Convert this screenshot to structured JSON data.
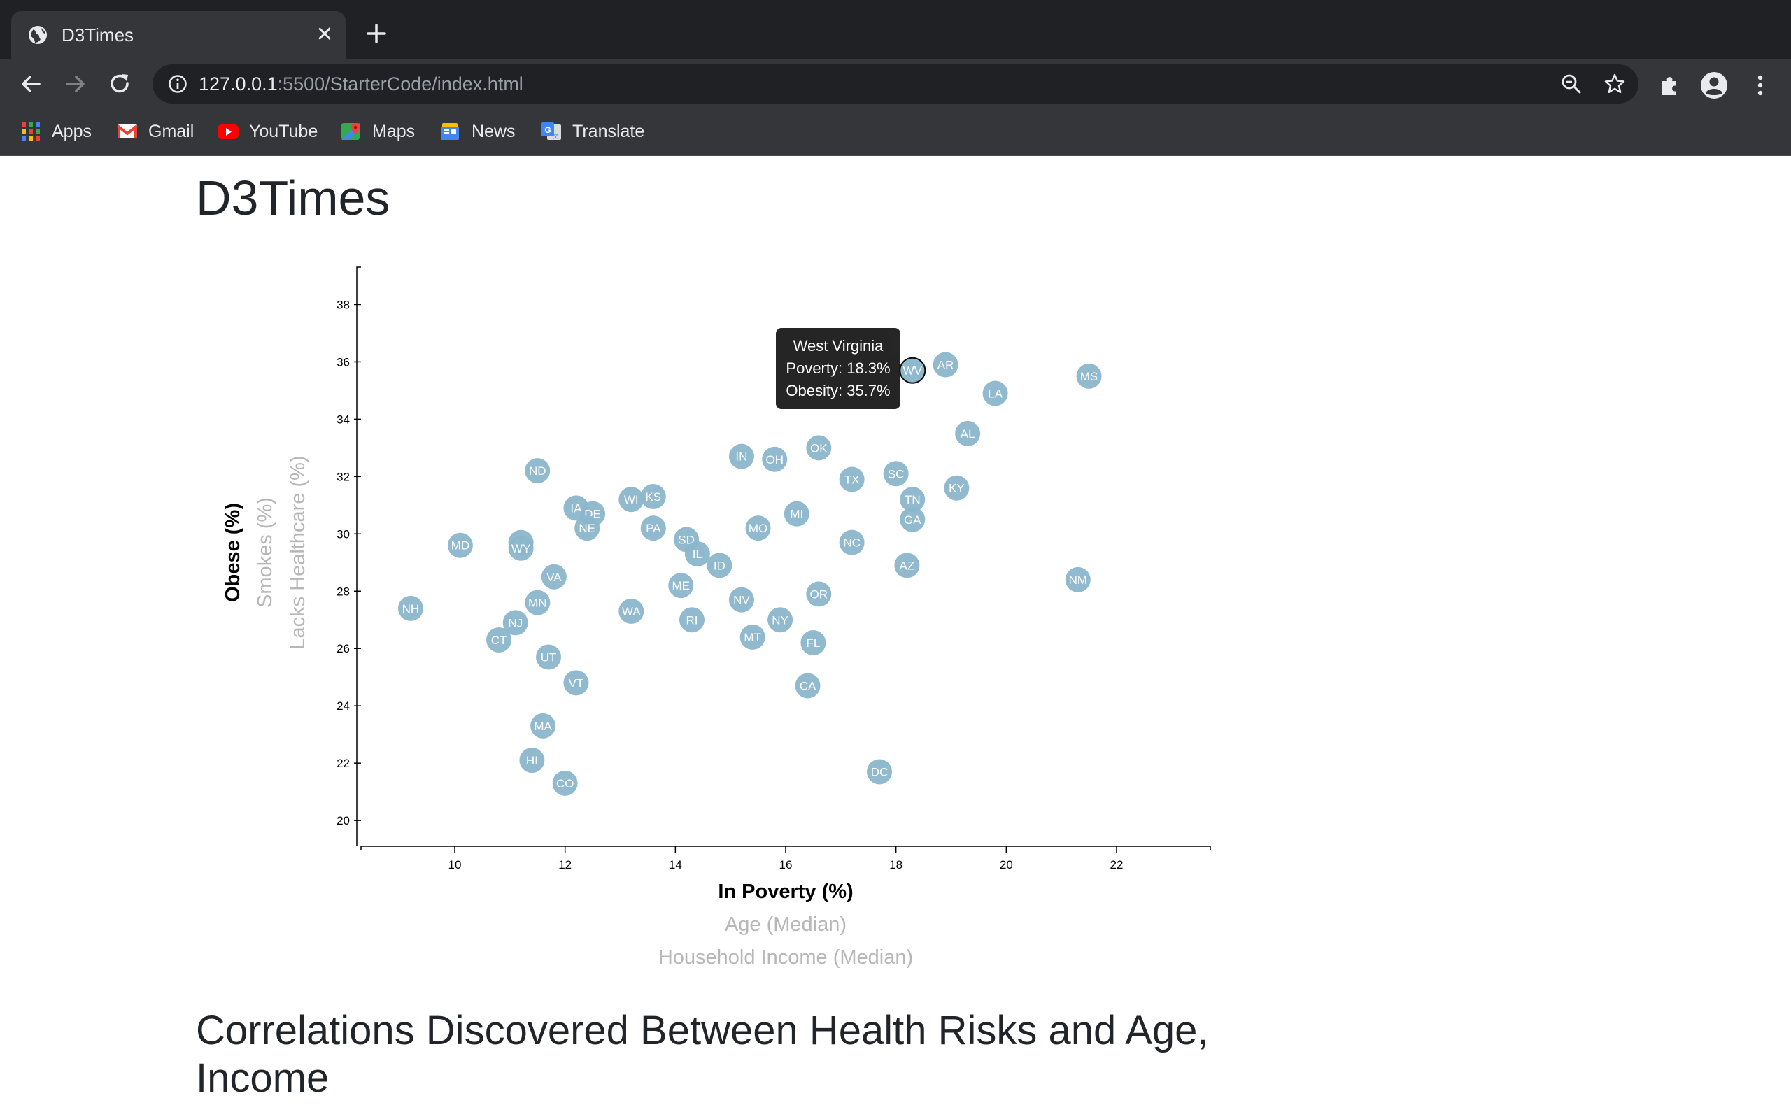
{
  "browser": {
    "tab_title": "D3Times",
    "new_tab_symbol": "+",
    "close_symbol": "✕",
    "url_host": "127.0.0.1",
    "url_rest": ":5500/StarterCode/index.html",
    "bookmarks": [
      {
        "label": "Apps",
        "icon": "apps-grid-icon"
      },
      {
        "label": "Gmail",
        "icon": "gmail-icon"
      },
      {
        "label": "YouTube",
        "icon": "youtube-icon"
      },
      {
        "label": "Maps",
        "icon": "maps-icon"
      },
      {
        "label": "News",
        "icon": "news-icon"
      },
      {
        "label": "Translate",
        "icon": "translate-icon"
      }
    ]
  },
  "page": {
    "title": "D3Times",
    "section_heading": "Correlations Discovered Between Health Risks and Age, Income"
  },
  "tooltip": {
    "state": "West Virginia",
    "line1": "Poverty: 18.3%",
    "line2": "Obesity: 35.7%"
  },
  "colors": {
    "marker_fill": "#8bb6cc",
    "marker_text": "#ffffff",
    "active_label": "#000000",
    "inactive_label": "#b7b7b7",
    "chrome_dark": "#202124",
    "chrome_mid": "#35363a"
  },
  "chart_data": {
    "type": "scatter",
    "title": "",
    "xlabel": "In Poverty (%)",
    "ylabel": "Obese (%)",
    "x_alt_labels": [
      "Age (Median)",
      "Household Income (Median)"
    ],
    "y_alt_labels": [
      "Smokes (%)",
      "Lacks Healthcare (%)"
    ],
    "xlim": [
      8.3,
      23.7
    ],
    "ylim": [
      19.1,
      39.5
    ],
    "x_ticks": [
      10,
      12,
      14,
      16,
      18,
      20,
      22
    ],
    "y_ticks": [
      20,
      22,
      24,
      26,
      28,
      30,
      32,
      34,
      36,
      38
    ],
    "highlighted": "WV",
    "points": [
      {
        "abbr": "WV",
        "x": 18.3,
        "y": 35.7
      },
      {
        "abbr": "AR",
        "x": 18.9,
        "y": 35.9
      },
      {
        "abbr": "MS",
        "x": 21.5,
        "y": 35.5
      },
      {
        "abbr": "LA",
        "x": 19.8,
        "y": 34.9
      },
      {
        "abbr": "AL",
        "x": 19.3,
        "y": 33.5
      },
      {
        "abbr": "OK",
        "x": 16.6,
        "y": 33.0
      },
      {
        "abbr": "IN",
        "x": 15.2,
        "y": 32.7
      },
      {
        "abbr": "OH",
        "x": 15.8,
        "y": 32.6
      },
      {
        "abbr": "SC",
        "x": 18.0,
        "y": 32.1
      },
      {
        "abbr": "ND",
        "x": 11.5,
        "y": 32.2
      },
      {
        "abbr": "TX",
        "x": 17.2,
        "y": 31.9
      },
      {
        "abbr": "KY",
        "x": 19.1,
        "y": 31.6
      },
      {
        "abbr": "KS",
        "x": 13.6,
        "y": 31.3
      },
      {
        "abbr": "WI",
        "x": 13.2,
        "y": 31.2
      },
      {
        "abbr": "TN",
        "x": 18.3,
        "y": 31.2
      },
      {
        "abbr": "IA",
        "x": 12.2,
        "y": 30.9
      },
      {
        "abbr": "DE",
        "x": 12.5,
        "y": 30.7
      },
      {
        "abbr": "MI",
        "x": 16.2,
        "y": 30.7
      },
      {
        "abbr": "GA",
        "x": 18.3,
        "y": 30.5
      },
      {
        "abbr": "NE",
        "x": 12.4,
        "y": 30.2
      },
      {
        "abbr": "PA",
        "x": 13.6,
        "y": 30.2
      },
      {
        "abbr": "MO",
        "x": 15.5,
        "y": 30.2
      },
      {
        "abbr": "SD",
        "x": 14.2,
        "y": 29.8
      },
      {
        "abbr": "AK",
        "x": 11.2,
        "y": 29.7
      },
      {
        "abbr": "MD",
        "x": 10.1,
        "y": 29.6
      },
      {
        "abbr": "NC",
        "x": 17.2,
        "y": 29.7
      },
      {
        "abbr": "WY",
        "x": 11.2,
        "y": 29.5
      },
      {
        "abbr": "IL",
        "x": 14.4,
        "y": 29.3
      },
      {
        "abbr": "ID",
        "x": 14.8,
        "y": 28.9
      },
      {
        "abbr": "AZ",
        "x": 18.2,
        "y": 28.9
      },
      {
        "abbr": "VA",
        "x": 11.8,
        "y": 28.5
      },
      {
        "abbr": "NM",
        "x": 21.3,
        "y": 28.4
      },
      {
        "abbr": "ME",
        "x": 14.1,
        "y": 28.2
      },
      {
        "abbr": "OR",
        "x": 16.6,
        "y": 27.9
      },
      {
        "abbr": "NV",
        "x": 15.2,
        "y": 27.7
      },
      {
        "abbr": "MN",
        "x": 11.5,
        "y": 27.6
      },
      {
        "abbr": "NH",
        "x": 9.2,
        "y": 27.4
      },
      {
        "abbr": "WA",
        "x": 13.2,
        "y": 27.3
      },
      {
        "abbr": "RI",
        "x": 14.3,
        "y": 27.0
      },
      {
        "abbr": "NY",
        "x": 15.9,
        "y": 27.0
      },
      {
        "abbr": "NJ",
        "x": 11.1,
        "y": 26.9
      },
      {
        "abbr": "MT",
        "x": 15.4,
        "y": 26.4
      },
      {
        "abbr": "CT",
        "x": 10.8,
        "y": 26.3
      },
      {
        "abbr": "FL",
        "x": 16.5,
        "y": 26.2
      },
      {
        "abbr": "UT",
        "x": 11.7,
        "y": 25.7
      },
      {
        "abbr": "VT",
        "x": 12.2,
        "y": 24.8
      },
      {
        "abbr": "CA",
        "x": 16.4,
        "y": 24.7
      },
      {
        "abbr": "MA",
        "x": 11.6,
        "y": 23.3
      },
      {
        "abbr": "HI",
        "x": 11.4,
        "y": 22.1
      },
      {
        "abbr": "DC",
        "x": 17.7,
        "y": 21.7
      },
      {
        "abbr": "CO",
        "x": 12.0,
        "y": 21.3
      }
    ]
  }
}
